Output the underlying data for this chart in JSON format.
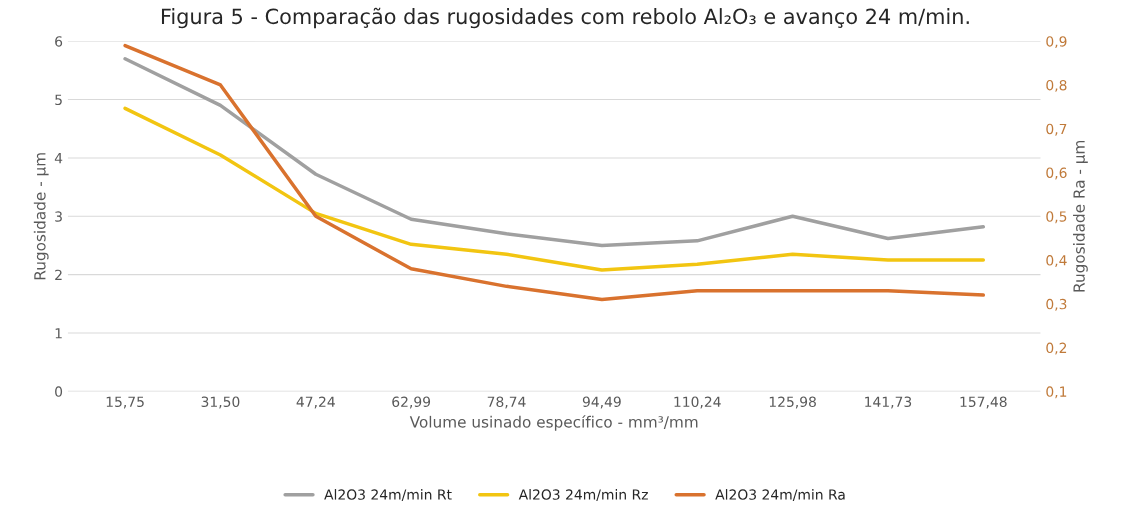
{
  "chart_data": {
    "type": "line",
    "title": "Figura 5 - Comparação das rugosidades com rebolo Al₂O₃ e avanço 24 m/min.",
    "xlabel": "Volume usinado específico - mm³/mm",
    "ylabel": "Rugosidade - µm",
    "y2label": "Rugosidade Ra - µm",
    "categories": [
      "15,75",
      "31,50",
      "47,24",
      "62,99",
      "78,74",
      "94,49",
      "110,24",
      "125,98",
      "141,73",
      "157,48"
    ],
    "series": [
      {
        "name": "Al2O3 24m/min Rt",
        "color": "#a0a0a0",
        "values": [
          5.7,
          4.9,
          3.72,
          2.95,
          2.7,
          2.5,
          2.58,
          3.0,
          2.62,
          2.82
        ]
      },
      {
        "name": "Al2O3 24m/min Rz",
        "color": "#f2c511",
        "values": [
          4.85,
          4.05,
          3.05,
          2.52,
          2.35,
          2.08,
          2.18,
          2.35,
          2.25,
          2.25
        ]
      },
      {
        "name": "Al2O3 24m/min Ra",
        "color": "#d9722e",
        "axis": "y2",
        "values": [
          0.89,
          0.8,
          0.5,
          0.38,
          0.34,
          0.31,
          0.33,
          0.33,
          0.33,
          0.32
        ]
      }
    ],
    "ylim": [
      0,
      6
    ],
    "yticks": [
      0,
      1,
      2,
      3,
      4,
      5,
      6
    ],
    "y2lim": [
      0.1,
      0.9
    ],
    "y2ticks": [
      {
        "value": 0.1,
        "label": "0,1"
      },
      {
        "value": 0.2,
        "label": "0,2"
      },
      {
        "value": 0.3,
        "label": "0,3"
      },
      {
        "value": 0.4,
        "label": "0,4"
      },
      {
        "value": 0.5,
        "label": "0,5"
      },
      {
        "value": 0.6,
        "label": "0,6"
      },
      {
        "value": 0.7,
        "label": "0,7"
      },
      {
        "value": 0.8,
        "label": "0,8"
      },
      {
        "value": 0.9,
        "label": "0,9"
      }
    ],
    "grid": "y",
    "legend": "bottom",
    "marker": "none",
    "line_style": "solid"
  }
}
